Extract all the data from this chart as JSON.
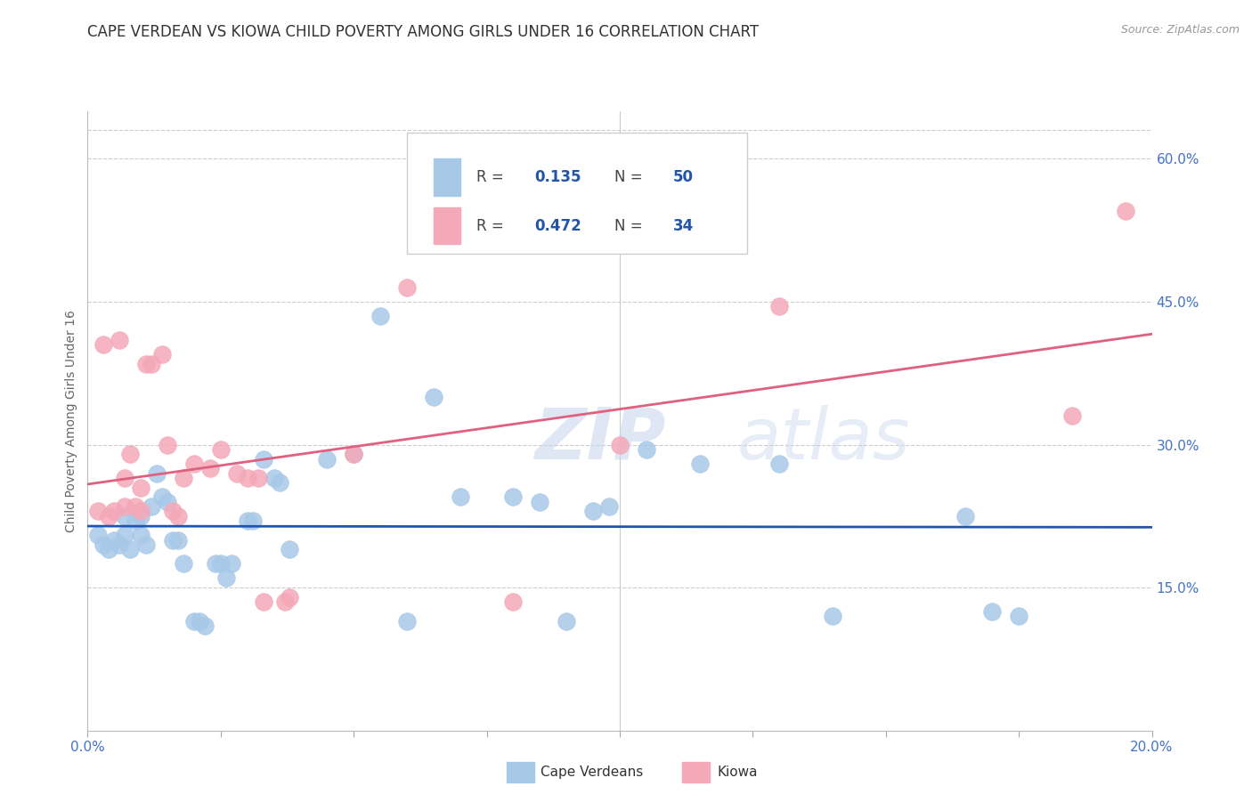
{
  "title": "CAPE VERDEAN VS KIOWA CHILD POVERTY AMONG GIRLS UNDER 16 CORRELATION CHART",
  "source": "Source: ZipAtlas.com",
  "ylabel": "Child Poverty Among Girls Under 16",
  "x_min": 0.0,
  "x_max": 20.0,
  "y_min": 0.0,
  "y_max": 65.0,
  "right_yticks": [
    15.0,
    30.0,
    45.0,
    60.0
  ],
  "watermark_zip": "ZIP",
  "watermark_atlas": "atlas",
  "blue_color": "#a8c8e8",
  "pink_color": "#f4a8b8",
  "blue_line_color": "#2255aa",
  "pink_line_color": "#e06080",
  "blue_scatter": [
    [
      0.2,
      20.5
    ],
    [
      0.3,
      19.5
    ],
    [
      0.4,
      19.0
    ],
    [
      0.5,
      20.0
    ],
    [
      0.6,
      19.5
    ],
    [
      0.7,
      20.5
    ],
    [
      0.7,
      22.5
    ],
    [
      0.8,
      19.0
    ],
    [
      0.9,
      22.0
    ],
    [
      1.0,
      22.5
    ],
    [
      1.0,
      20.5
    ],
    [
      1.1,
      19.5
    ],
    [
      1.2,
      23.5
    ],
    [
      1.3,
      27.0
    ],
    [
      1.4,
      24.5
    ],
    [
      1.5,
      24.0
    ],
    [
      1.6,
      20.0
    ],
    [
      1.7,
      20.0
    ],
    [
      1.8,
      17.5
    ],
    [
      2.0,
      11.5
    ],
    [
      2.1,
      11.5
    ],
    [
      2.2,
      11.0
    ],
    [
      2.4,
      17.5
    ],
    [
      2.5,
      17.5
    ],
    [
      2.6,
      16.0
    ],
    [
      2.7,
      17.5
    ],
    [
      3.0,
      22.0
    ],
    [
      3.1,
      22.0
    ],
    [
      3.3,
      28.5
    ],
    [
      3.5,
      26.5
    ],
    [
      3.6,
      26.0
    ],
    [
      3.8,
      19.0
    ],
    [
      4.5,
      28.5
    ],
    [
      5.5,
      43.5
    ],
    [
      6.5,
      35.0
    ],
    [
      7.0,
      24.5
    ],
    [
      8.0,
      24.5
    ],
    [
      8.5,
      24.0
    ],
    [
      9.5,
      23.0
    ],
    [
      9.8,
      23.5
    ],
    [
      10.5,
      29.5
    ],
    [
      11.5,
      28.0
    ],
    [
      13.0,
      28.0
    ],
    [
      14.0,
      12.0
    ],
    [
      16.5,
      22.5
    ],
    [
      17.0,
      12.5
    ],
    [
      17.5,
      12.0
    ],
    [
      6.0,
      11.5
    ],
    [
      9.0,
      11.5
    ],
    [
      5.0,
      29.0
    ]
  ],
  "pink_scatter": [
    [
      0.2,
      23.0
    ],
    [
      0.3,
      40.5
    ],
    [
      0.4,
      22.5
    ],
    [
      0.5,
      23.0
    ],
    [
      0.6,
      41.0
    ],
    [
      0.7,
      23.5
    ],
    [
      0.7,
      26.5
    ],
    [
      0.8,
      29.0
    ],
    [
      0.9,
      23.5
    ],
    [
      1.0,
      23.0
    ],
    [
      1.0,
      25.5
    ],
    [
      1.1,
      38.5
    ],
    [
      1.2,
      38.5
    ],
    [
      1.4,
      39.5
    ],
    [
      1.5,
      30.0
    ],
    [
      1.6,
      23.0
    ],
    [
      1.7,
      22.5
    ],
    [
      1.8,
      26.5
    ],
    [
      2.0,
      28.0
    ],
    [
      2.3,
      27.5
    ],
    [
      2.5,
      29.5
    ],
    [
      2.8,
      27.0
    ],
    [
      3.0,
      26.5
    ],
    [
      3.2,
      26.5
    ],
    [
      3.3,
      13.5
    ],
    [
      3.7,
      13.5
    ],
    [
      3.8,
      14.0
    ],
    [
      5.0,
      29.0
    ],
    [
      6.0,
      46.5
    ],
    [
      8.0,
      13.5
    ],
    [
      10.0,
      30.0
    ],
    [
      13.0,
      44.5
    ],
    [
      18.5,
      33.0
    ],
    [
      19.5,
      54.5
    ]
  ],
  "grid_color": "#cccccc",
  "background_color": "#ffffff",
  "right_axis_color": "#4472c4",
  "title_fontsize": 12,
  "label_fontsize": 10,
  "tick_fontsize": 11
}
